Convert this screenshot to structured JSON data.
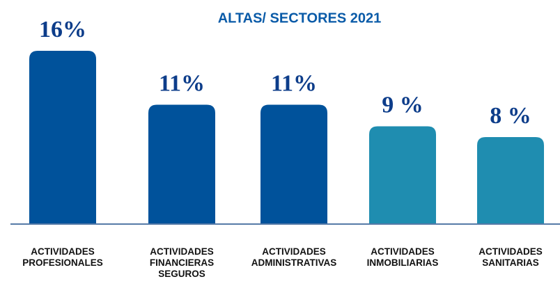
{
  "chart_data": {
    "type": "bar",
    "title": "ALTAS/ SECTORES 2021",
    "categories": [
      "ACTIVIDADES\nPROFESIONALES",
      "ACTIVIDADES\nFINANCIERAS\nSEGUROS",
      "ACTIVIDADES\nADMINISTRATIVAS",
      "ACTIVIDADES\nINMOBILIARIAS",
      "ACTIVIDADES\nSANITARIAS"
    ],
    "values": [
      16,
      11,
      11,
      9,
      8
    ],
    "value_labels": [
      "16%",
      "11%",
      "11%",
      "9 %",
      "8 %"
    ],
    "colors": [
      "#00529b",
      "#00529b",
      "#00529b",
      "#1f8db0",
      "#1f8db0"
    ],
    "ylim": [
      0,
      16
    ]
  }
}
